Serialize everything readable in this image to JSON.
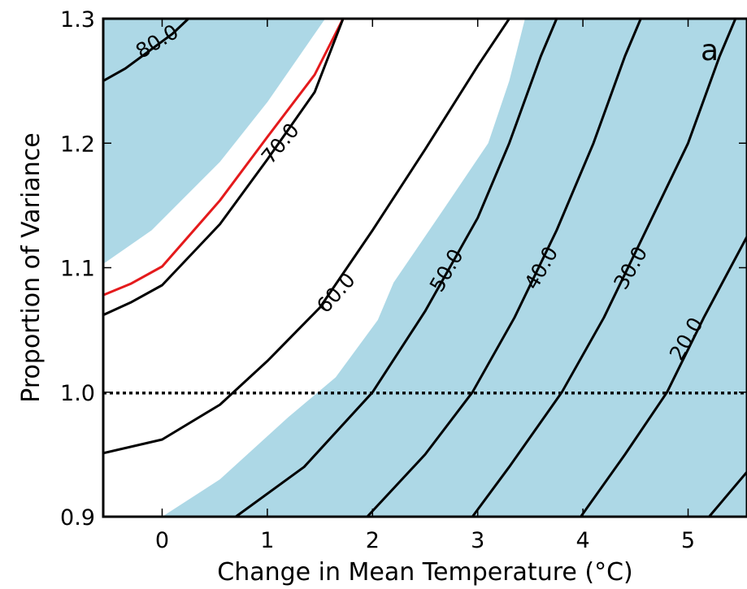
{
  "chart_data": {
    "type": "contour",
    "panel_label": "a",
    "xlabel": "Change in Mean Temperature (°C)",
    "ylabel": "Proportion of Variance",
    "xlim": [
      -0.56,
      5.56
    ],
    "ylim": [
      0.9,
      1.3
    ],
    "x_ticks": [
      0,
      1,
      2,
      3,
      4,
      5
    ],
    "y_ticks": [
      0.9,
      1.0,
      1.1,
      1.2,
      1.3
    ],
    "reference_line": {
      "y": 1.0,
      "style": "dotted"
    },
    "colors": {
      "shade": "#add8e6",
      "contour": "#000000",
      "highlight_contour": "#e41a1c"
    },
    "shaded_regions": [
      {
        "name": "upper-left",
        "polygon": [
          [
            -0.56,
            1.3
          ],
          [
            -0.56,
            1.103
          ],
          [
            -0.1,
            1.13
          ],
          [
            0.55,
            1.185
          ],
          [
            1.0,
            1.233
          ],
          [
            1.55,
            1.3
          ]
        ]
      },
      {
        "name": "right",
        "polygon": [
          [
            -0.56,
            0.9
          ],
          [
            -0.56,
            0.9
          ],
          [
            0.0,
            0.9
          ],
          [
            0.55,
            0.93
          ],
          [
            1.2,
            0.98
          ],
          [
            1.65,
            1.012
          ],
          [
            2.05,
            1.058
          ],
          [
            2.2,
            1.088
          ],
          [
            2.7,
            1.15
          ],
          [
            3.1,
            1.2
          ],
          [
            3.3,
            1.25
          ],
          [
            3.45,
            1.3
          ],
          [
            5.56,
            1.3
          ],
          [
            5.56,
            0.9
          ]
        ]
      }
    ],
    "contours": [
      {
        "label": "80.0",
        "points": [
          [
            -0.56,
            1.25
          ],
          [
            -0.35,
            1.26
          ],
          [
            0.1,
            1.288
          ],
          [
            0.25,
            1.3
          ]
        ],
        "label_pos": [
          -0.05,
          1.282
        ],
        "label_angle": -31
      },
      {
        "label": "",
        "highlight": true,
        "points": [
          [
            -0.56,
            1.078
          ],
          [
            -0.3,
            1.087
          ],
          [
            0.0,
            1.101
          ],
          [
            0.55,
            1.154
          ],
          [
            1.0,
            1.205
          ],
          [
            1.45,
            1.255
          ],
          [
            1.72,
            1.3
          ]
        ]
      },
      {
        "label": "70.0",
        "points": [
          [
            -0.56,
            1.062
          ],
          [
            -0.3,
            1.072
          ],
          [
            0.0,
            1.086
          ],
          [
            0.55,
            1.135
          ],
          [
            1.0,
            1.187
          ],
          [
            1.45,
            1.241
          ],
          [
            1.72,
            1.3
          ]
        ],
        "label_pos": [
          1.12,
          1.2
        ],
        "label_angle": -50
      },
      {
        "label": "60.0",
        "points": [
          [
            -0.56,
            0.951
          ],
          [
            0.0,
            0.962
          ],
          [
            0.55,
            0.99
          ],
          [
            1.0,
            1.025
          ],
          [
            1.5,
            1.068
          ],
          [
            2.0,
            1.13
          ],
          [
            2.5,
            1.195
          ],
          [
            3.0,
            1.262
          ],
          [
            3.3,
            1.3
          ]
        ],
        "label_pos": [
          1.65,
          1.08
        ],
        "label_angle": -48
      },
      {
        "label": "50.0",
        "points": [
          [
            0.7,
            0.9
          ],
          [
            1.35,
            0.94
          ],
          [
            2.0,
            1.0
          ],
          [
            2.5,
            1.065
          ],
          [
            3.0,
            1.14
          ],
          [
            3.3,
            1.2
          ],
          [
            3.6,
            1.27
          ],
          [
            3.75,
            1.3
          ]
        ],
        "label_pos": [
          2.7,
          1.098
        ],
        "label_angle": -60
      },
      {
        "label": "40.0",
        "points": [
          [
            1.95,
            0.9
          ],
          [
            2.5,
            0.95
          ],
          [
            2.95,
            1.0
          ],
          [
            3.35,
            1.06
          ],
          [
            3.75,
            1.13
          ],
          [
            4.1,
            1.2
          ],
          [
            4.4,
            1.27
          ],
          [
            4.55,
            1.3
          ]
        ],
        "label_pos": [
          3.6,
          1.1
        ],
        "label_angle": -60
      },
      {
        "label": "30.0",
        "points": [
          [
            2.95,
            0.9
          ],
          [
            3.3,
            0.94
          ],
          [
            3.8,
            1.0
          ],
          [
            4.2,
            1.06
          ],
          [
            4.6,
            1.13
          ],
          [
            5.0,
            1.2
          ],
          [
            5.3,
            1.27
          ],
          [
            5.45,
            1.3
          ]
        ],
        "label_pos": [
          4.45,
          1.1
        ],
        "label_angle": -60
      },
      {
        "label": "20.0",
        "points": [
          [
            3.98,
            0.9
          ],
          [
            4.4,
            0.95
          ],
          [
            4.8,
            1.0
          ],
          [
            5.15,
            1.06
          ],
          [
            5.56,
            1.125
          ]
        ],
        "label_pos": [
          4.98,
          1.043
        ],
        "label_angle": -60
      },
      {
        "label": "",
        "points": [
          [
            5.2,
            0.9
          ],
          [
            5.56,
            0.936
          ]
        ]
      }
    ]
  }
}
